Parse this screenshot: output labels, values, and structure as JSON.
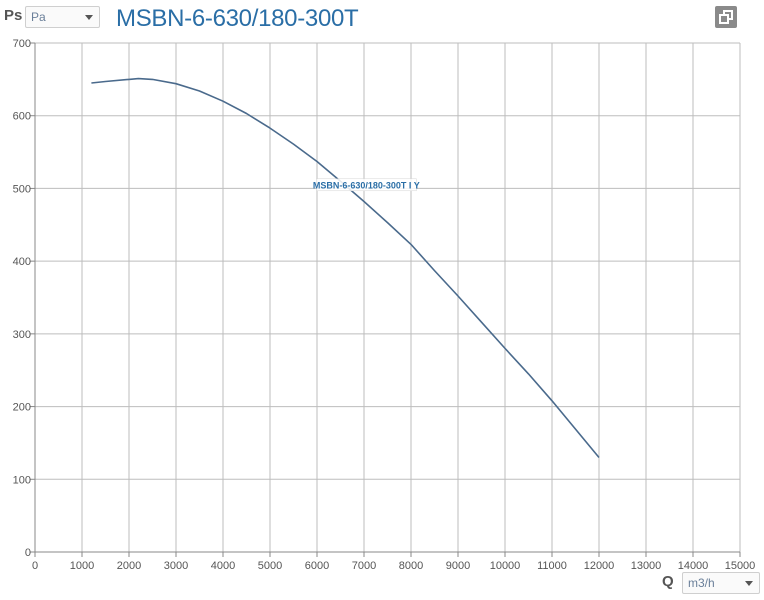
{
  "y_control": {
    "axis_name": "Ps",
    "unit": "Pa"
  },
  "x_control": {
    "axis_name": "Q",
    "unit": "m3/h"
  },
  "header": {
    "title": "MSBN-6-630/180-300T"
  },
  "chart_data": {
    "type": "line",
    "title": "MSBN-6-630/180-300T",
    "xlabel": "Q",
    "ylabel": "Ps",
    "xlim": [
      0,
      15000
    ],
    "ylim": [
      0,
      700
    ],
    "x_ticks": [
      0,
      1000,
      2000,
      3000,
      4000,
      5000,
      6000,
      7000,
      8000,
      9000,
      10000,
      11000,
      12000,
      13000,
      14000,
      15000
    ],
    "y_ticks": [
      0,
      100,
      200,
      300,
      400,
      500,
      600,
      700
    ],
    "grid": true,
    "series": [
      {
        "name": "MSBN-6-630/180-300T I Y",
        "color": "#4a6a8c",
        "x": [
          1200,
          1500,
          2000,
          2200,
          2500,
          3000,
          3500,
          4000,
          4500,
          5000,
          5500,
          6000,
          6500,
          7000,
          7500,
          8000,
          8500,
          9000,
          9500,
          10000,
          10500,
          11000,
          11500,
          12000
        ],
        "y": [
          645,
          647,
          650,
          651,
          650,
          644,
          634,
          620,
          603,
          583,
          561,
          537,
          510,
          482,
          453,
          423,
          387,
          352,
          316,
          280,
          245,
          208,
          169,
          130
        ]
      }
    ],
    "annotations": [
      {
        "text": "MSBN-6-630/180-300T I Y",
        "x": 7050,
        "y": 505
      }
    ]
  }
}
